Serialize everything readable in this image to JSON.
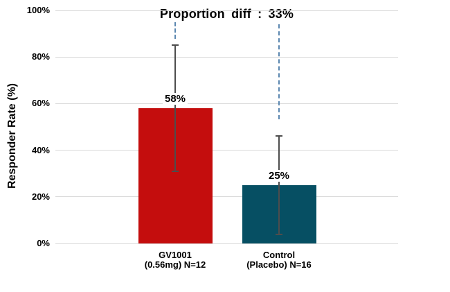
{
  "chart_data": {
    "type": "bar",
    "title": "Proportion diff : 33%",
    "ylabel": "Responder Rate (%)",
    "xlabel": "",
    "ylim": [
      0,
      100
    ],
    "yticks": [
      0,
      20,
      40,
      60,
      80,
      100
    ],
    "ytick_labels": [
      "0%",
      "20%",
      "40%",
      "60%",
      "80%",
      "100%"
    ],
    "grid": true,
    "legend": false,
    "categories": [
      "GV1001 (0.56mg) N=12",
      "Control (Placebo) N=16"
    ],
    "category_label_lines": [
      [
        "GV1001",
        "(0.56mg) N=12"
      ],
      [
        "Control",
        "(Placebo) N=16"
      ]
    ],
    "series": [
      {
        "name": "Responder Rate (%)",
        "values": [
          58,
          25
        ],
        "value_labels": [
          "58%",
          "25%"
        ],
        "error_low": [
          31,
          4
        ],
        "error_high": [
          85,
          46
        ],
        "bar_colors": [
          "#c40d0d",
          "#064f63"
        ]
      }
    ],
    "annotations": [
      {
        "kind": "title-callout",
        "text": "Proportion diff : 33%",
        "value": "33%"
      },
      {
        "kind": "dashed-connector",
        "category_index": 0
      },
      {
        "kind": "dashed-connector",
        "category_index": 1
      }
    ]
  },
  "colors": {
    "bar_gv1001": "#c40d0d",
    "bar_control": "#064f63",
    "gridline": "#d9d9d9",
    "error_bar": "#4d4d4d",
    "dashed_connector": "#5b87b0",
    "text": "#000000",
    "background": "#ffffff"
  }
}
